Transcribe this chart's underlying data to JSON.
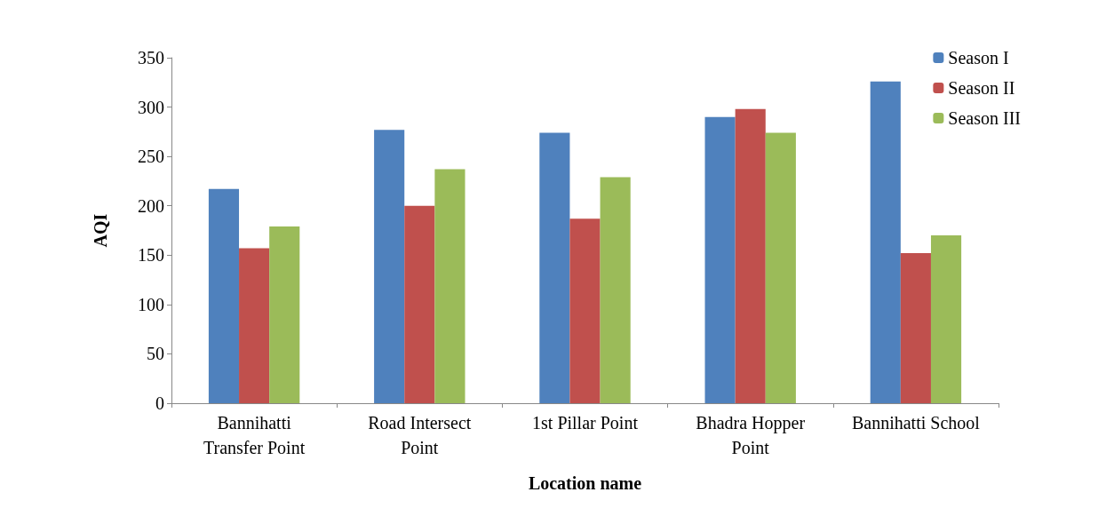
{
  "chart_data": {
    "type": "bar",
    "xlabel": "Location name",
    "ylabel": "AQI",
    "categories": [
      "Bannihatti\nTransfer Point",
      "Road Intersect\nPoint",
      "1st Pillar Point",
      "Bhadra Hopper\nPoint",
      "Bannihatti School"
    ],
    "series": [
      {
        "name": "Season I",
        "color": "#4f81bd",
        "values": [
          217,
          277,
          274,
          290,
          326
        ]
      },
      {
        "name": "Season II",
        "color": "#c0504d",
        "values": [
          157,
          200,
          187,
          298,
          152
        ]
      },
      {
        "name": "Season III",
        "color": "#9bbb59",
        "values": [
          179,
          237,
          229,
          274,
          170
        ]
      }
    ],
    "ylim": [
      0,
      350
    ],
    "yticks": [
      0,
      50,
      100,
      150,
      200,
      250,
      300,
      350
    ],
    "grid": false,
    "legend": "top right"
  }
}
